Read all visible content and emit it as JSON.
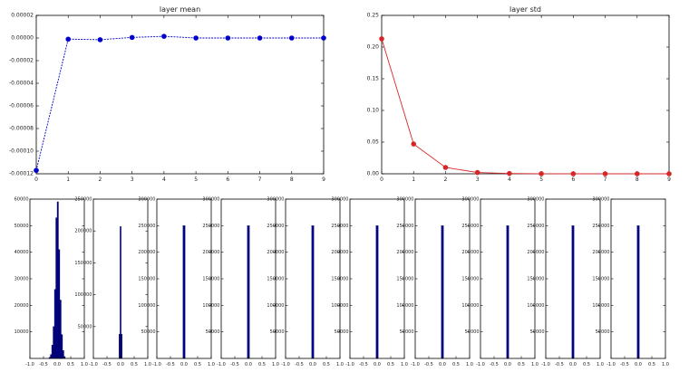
{
  "chart_data": [
    {
      "type": "line",
      "title": "layer mean",
      "color": "#0000cc",
      "x": [
        0,
        1,
        2,
        3,
        4,
        5,
        6,
        7,
        8,
        9
      ],
      "y": [
        -0.000117,
        -1e-06,
        -1.5e-06,
        5e-07,
        1.5e-06,
        0.0,
        0.0,
        0.0,
        0.0,
        0.0
      ],
      "xlim": [
        0,
        9
      ],
      "ylim": [
        -0.00012,
        2e-05
      ],
      "yticks": [
        2e-05,
        0.0,
        -2e-05,
        -4e-05,
        -6e-05,
        -8e-05,
        -0.0001,
        -0.00012
      ],
      "ytick_labels": [
        "0.00002",
        "0.00000",
        "-0.00002",
        "-0.00004",
        "-0.00006",
        "-0.00008",
        "-0.00010",
        "-0.00012"
      ],
      "xtick_labels": [
        "0",
        "1",
        "2",
        "3",
        "4",
        "5",
        "6",
        "7",
        "8",
        "9"
      ]
    },
    {
      "type": "line",
      "title": "layer std",
      "color": "#d62728",
      "x": [
        0,
        1,
        2,
        3,
        4,
        5,
        6,
        7,
        8,
        9
      ],
      "y": [
        0.213,
        0.047,
        0.01,
        0.002,
        0.0005,
        0.0001,
        0.0,
        0.0,
        0.0,
        0.0
      ],
      "xlim": [
        0,
        9
      ],
      "ylim": [
        0,
        0.25
      ],
      "yticks": [
        0.25,
        0.2,
        0.15,
        0.1,
        0.05,
        0.0
      ],
      "ytick_labels": [
        "0.25",
        "0.20",
        "0.15",
        "0.10",
        "0.05",
        "0.00"
      ],
      "xtick_labels": [
        "0",
        "1",
        "2",
        "3",
        "4",
        "5",
        "6",
        "7",
        "8",
        "9"
      ]
    },
    {
      "type": "bar",
      "subtype": "histogram",
      "color": "#00008b",
      "xlim": [
        -1,
        1
      ],
      "xtick_labels": [
        "-1.0",
        "-0.5",
        "0.0",
        "0.5",
        "1.0"
      ],
      "ylim": [
        0,
        60000
      ],
      "ytick_labels": [
        "10000",
        "20000",
        "30000",
        "40000",
        "50000",
        "60000"
      ],
      "ytick_values": [
        10000,
        20000,
        30000,
        40000,
        50000,
        60000
      ],
      "bins": [
        {
          "x0": -0.3,
          "x1": -0.25,
          "count": 400
        },
        {
          "x0": -0.25,
          "x1": -0.2,
          "count": 1500
        },
        {
          "x0": -0.2,
          "x1": -0.15,
          "count": 5000
        },
        {
          "x0": -0.15,
          "x1": -0.1,
          "count": 12000
        },
        {
          "x0": -0.1,
          "x1": -0.05,
          "count": 26000
        },
        {
          "x0": -0.05,
          "x1": 0.0,
          "count": 53000
        },
        {
          "x0": 0.0,
          "x1": 0.05,
          "count": 59000
        },
        {
          "x0": 0.05,
          "x1": 0.1,
          "count": 41000
        },
        {
          "x0": 0.1,
          "x1": 0.15,
          "count": 22000
        },
        {
          "x0": 0.15,
          "x1": 0.2,
          "count": 9000
        },
        {
          "x0": 0.2,
          "x1": 0.25,
          "count": 3000
        },
        {
          "x0": 0.25,
          "x1": 0.3,
          "count": 700
        }
      ]
    },
    {
      "type": "bar",
      "subtype": "histogram",
      "color": "#00008b",
      "xlim": [
        -1,
        1
      ],
      "xtick_labels": [
        "-1.0",
        "-0.5",
        "0.0",
        "0.5",
        "1.0"
      ],
      "ylim": [
        0,
        250000
      ],
      "ytick_labels": [
        "50000",
        "100000",
        "150000",
        "200000",
        "250000"
      ],
      "ytick_values": [
        50000,
        100000,
        150000,
        200000,
        250000
      ],
      "bins": [
        {
          "x0": -0.06,
          "x1": -0.02,
          "count": 38000
        },
        {
          "x0": -0.02,
          "x1": 0.02,
          "count": 207000
        },
        {
          "x0": 0.02,
          "x1": 0.06,
          "count": 38000
        }
      ]
    },
    {
      "type": "bar",
      "subtype": "histogram",
      "color": "#00008b",
      "xlim": [
        -1,
        1
      ],
      "xtick_labels": [
        "-1.0",
        "-0.5",
        "0.0",
        "0.5",
        "1.0"
      ],
      "ylim": [
        0,
        300000
      ],
      "ytick_labels": [
        "50000",
        "100000",
        "150000",
        "200000",
        "250000",
        "300000"
      ],
      "ytick_values": [
        50000,
        100000,
        150000,
        200000,
        250000,
        300000
      ],
      "bins": [
        {
          "x0": -0.04,
          "x1": 0.04,
          "count": 250000
        }
      ]
    },
    {
      "type": "bar",
      "subtype": "histogram",
      "color": "#00008b",
      "xlim": [
        -1,
        1
      ],
      "xtick_labels": [
        "-1.0",
        "-0.5",
        "0.0",
        "0.5",
        "1.0"
      ],
      "ylim": [
        0,
        300000
      ],
      "ytick_labels": [
        "50000",
        "100000",
        "150000",
        "200000",
        "250000",
        "300000"
      ],
      "ytick_values": [
        50000,
        100000,
        150000,
        200000,
        250000,
        300000
      ],
      "bins": [
        {
          "x0": -0.04,
          "x1": 0.04,
          "count": 250000
        }
      ]
    },
    {
      "type": "bar",
      "subtype": "histogram",
      "color": "#00008b",
      "xlim": [
        -1,
        1
      ],
      "xtick_labels": [
        "-1.0",
        "-0.5",
        "0.0",
        "0.5",
        "1.0"
      ],
      "ylim": [
        0,
        300000
      ],
      "ytick_labels": [
        "50000",
        "100000",
        "150000",
        "200000",
        "250000",
        "300000"
      ],
      "ytick_values": [
        50000,
        100000,
        150000,
        200000,
        250000,
        300000
      ],
      "bins": [
        {
          "x0": -0.04,
          "x1": 0.04,
          "count": 250000
        }
      ]
    },
    {
      "type": "bar",
      "subtype": "histogram",
      "color": "#00008b",
      "xlim": [
        -1,
        1
      ],
      "xtick_labels": [
        "-1.0",
        "-0.5",
        "0.0",
        "0.5",
        "1.0"
      ],
      "ylim": [
        0,
        300000
      ],
      "ytick_labels": [
        "50000",
        "100000",
        "150000",
        "200000",
        "250000",
        "300000"
      ],
      "ytick_values": [
        50000,
        100000,
        150000,
        200000,
        250000,
        300000
      ],
      "bins": [
        {
          "x0": -0.04,
          "x1": 0.04,
          "count": 250000
        }
      ]
    },
    {
      "type": "bar",
      "subtype": "histogram",
      "color": "#00008b",
      "xlim": [
        -1,
        1
      ],
      "xtick_labels": [
        "-1.0",
        "-0.5",
        "0.0",
        "0.5",
        "1.0"
      ],
      "ylim": [
        0,
        300000
      ],
      "ytick_labels": [
        "50000",
        "100000",
        "150000",
        "200000",
        "250000",
        "300000"
      ],
      "ytick_values": [
        50000,
        100000,
        150000,
        200000,
        250000,
        300000
      ],
      "bins": [
        {
          "x0": -0.04,
          "x1": 0.04,
          "count": 250000
        }
      ]
    },
    {
      "type": "bar",
      "subtype": "histogram",
      "color": "#00008b",
      "xlim": [
        -1,
        1
      ],
      "xtick_labels": [
        "-1.0",
        "-0.5",
        "0.0",
        "0.5",
        "1.0"
      ],
      "ylim": [
        0,
        300000
      ],
      "ytick_labels": [
        "50000",
        "100000",
        "150000",
        "200000",
        "250000",
        "300000"
      ],
      "ytick_values": [
        50000,
        100000,
        150000,
        200000,
        250000,
        300000
      ],
      "bins": [
        {
          "x0": -0.04,
          "x1": 0.04,
          "count": 250000
        }
      ]
    },
    {
      "type": "bar",
      "subtype": "histogram",
      "color": "#00008b",
      "xlim": [
        -1,
        1
      ],
      "xtick_labels": [
        "-1.0",
        "-0.5",
        "0.0",
        "0.5",
        "1.0"
      ],
      "ylim": [
        0,
        300000
      ],
      "ytick_labels": [
        "50000",
        "100000",
        "150000",
        "200000",
        "250000",
        "300000"
      ],
      "ytick_values": [
        50000,
        100000,
        150000,
        200000,
        250000,
        300000
      ],
      "bins": [
        {
          "x0": -0.04,
          "x1": 0.04,
          "count": 250000
        }
      ]
    },
    {
      "type": "bar",
      "subtype": "histogram",
      "color": "#00008b",
      "xlim": [
        -1,
        1
      ],
      "xtick_labels": [
        "-1.0",
        "-0.5",
        "0.0",
        "0.5",
        "1.0"
      ],
      "ylim": [
        0,
        300000
      ],
      "ytick_labels": [
        "50000",
        "100000",
        "150000",
        "200000",
        "250000",
        "300000"
      ],
      "ytick_values": [
        50000,
        100000,
        150000,
        200000,
        250000,
        300000
      ],
      "bins": [
        {
          "x0": -0.04,
          "x1": 0.04,
          "count": 250000
        }
      ]
    }
  ]
}
